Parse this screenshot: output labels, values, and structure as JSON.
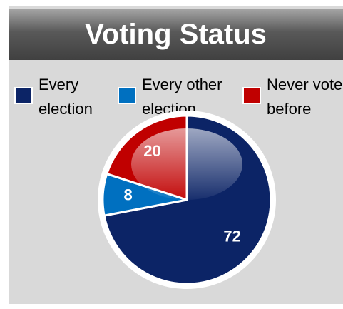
{
  "chart_data": {
    "type": "pie",
    "title": "Voting Status",
    "categories": [
      "Every election",
      "Every other election",
      "Never voted before"
    ],
    "values": [
      72,
      8,
      20
    ],
    "colors": [
      "#0c2466",
      "#0070c0",
      "#c00000"
    ],
    "legend": "top"
  }
}
